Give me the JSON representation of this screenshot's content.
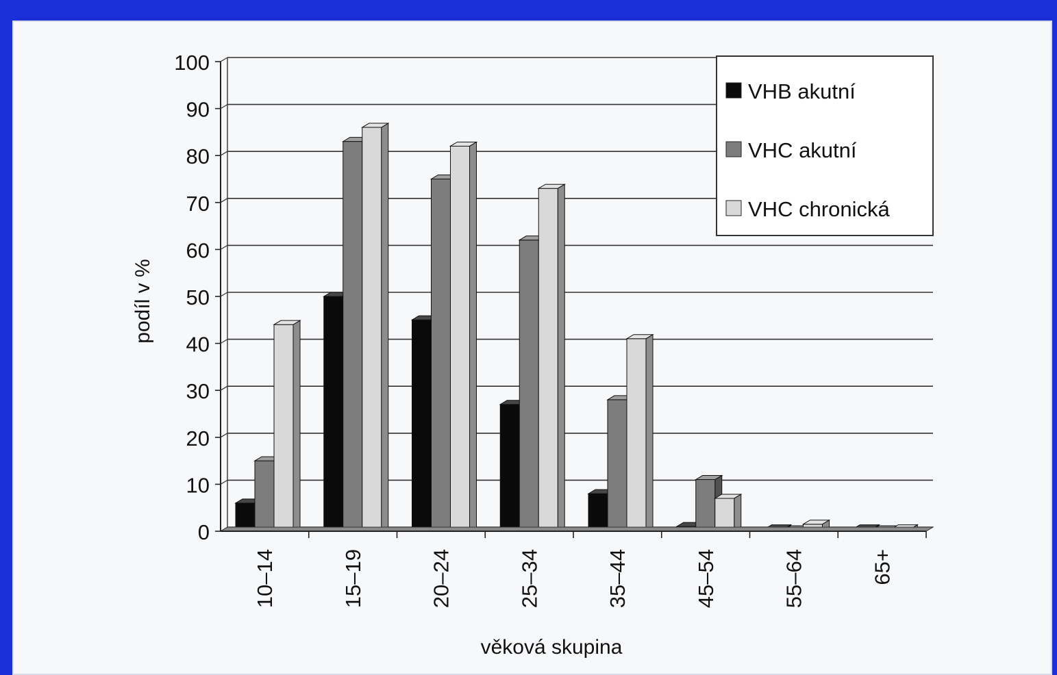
{
  "chart_data": {
    "type": "bar",
    "xlabel": "věková skupina",
    "ylabel": "podíl v %",
    "ylim": [
      0,
      100
    ],
    "yticks": [
      0,
      10,
      20,
      30,
      40,
      50,
      60,
      70,
      80,
      90,
      100
    ],
    "grid": true,
    "legend_position": "top-right",
    "categories": [
      "10–14",
      "15–19",
      "20–24",
      "25–34",
      "35–44",
      "45–54",
      "55–64",
      "65+"
    ],
    "series": [
      {
        "name": "VHB akutní",
        "color": "#0a0a0a",
        "values": [
          6,
          50,
          45,
          27,
          8,
          1,
          0.5,
          0.5
        ]
      },
      {
        "name": "VHC akutní",
        "color": "#7d7d7d",
        "values": [
          15,
          83,
          75,
          62,
          28,
          11,
          0.3,
          0.3
        ]
      },
      {
        "name": "VHC chronická",
        "color": "#d9d9d9",
        "values": [
          44,
          86,
          82,
          73,
          41,
          7,
          1.5,
          0.5
        ]
      }
    ]
  }
}
